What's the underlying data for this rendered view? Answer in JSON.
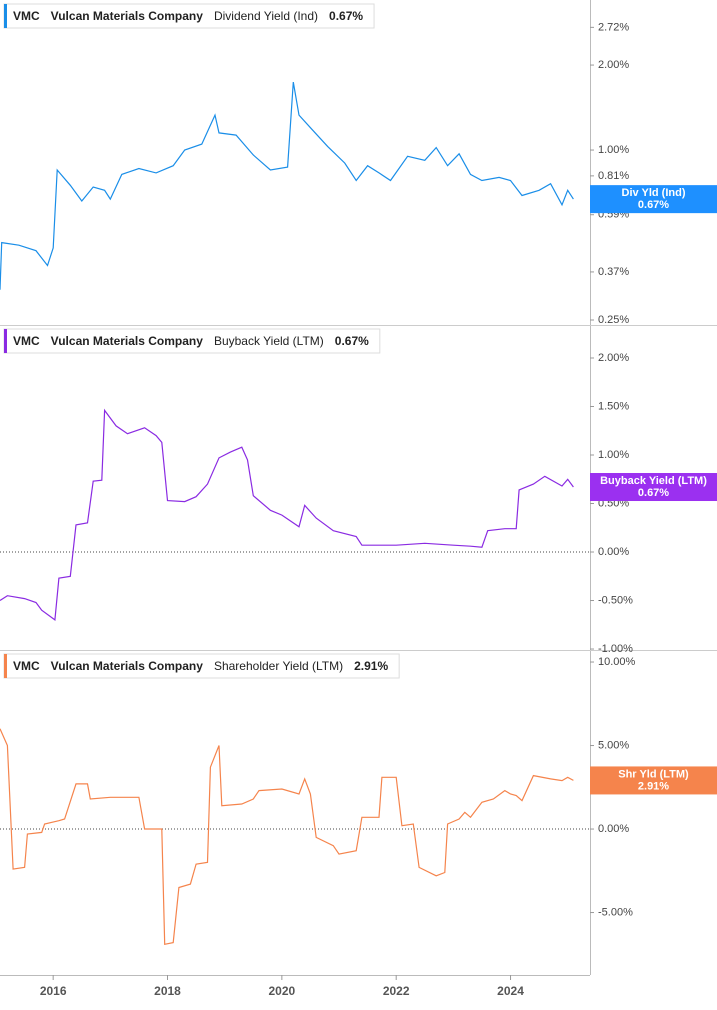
{
  "chart_data": [
    {
      "type": "line",
      "ticker": "VMC",
      "company": "Vulcan Materials Company",
      "log_scale": true,
      "last_value_label": "0.67%",
      "badge": "Div Yld (Ind)",
      "xlim": [
        2015.07,
        2025.39
      ],
      "ylim": [
        0.24,
        3.4
      ],
      "yticks": [
        {
          "value": 0.25,
          "label": "0.25%"
        },
        {
          "value": 0.37,
          "label": "0.37%"
        },
        {
          "value": 0.59,
          "label": "0.59%"
        },
        {
          "value": 0.81,
          "label": "0.81%"
        },
        {
          "value": 1.0,
          "label": "1.00%"
        },
        {
          "value": 2.0,
          "label": "2.00%"
        },
        {
          "value": 2.72,
          "label": "2.72%"
        }
      ],
      "x": [
        2015.07,
        2015.1,
        2015.4,
        2015.7,
        2015.9,
        2016.0,
        2016.07,
        2016.3,
        2016.5,
        2016.7,
        2016.9,
        2017.0,
        2017.2,
        2017.5,
        2017.8,
        2018.1,
        2018.3,
        2018.6,
        2018.83,
        2018.9,
        2019.2,
        2019.5,
        2019.8,
        2020.1,
        2020.2,
        2020.3,
        2020.5,
        2020.8,
        2021.1,
        2021.3,
        2021.5,
        2021.7,
        2021.9,
        2022.2,
        2022.5,
        2022.7,
        2022.9,
        2023.1,
        2023.3,
        2023.5,
        2023.8,
        2024.0,
        2024.2,
        2024.5,
        2024.7,
        2024.9,
        2025.0,
        2025.1
      ],
      "series": [
        {
          "name": "Dividend Yield (Ind)",
          "color": "#1a8ee8",
          "badge_color": "#1e90ff",
          "values": [
            0.32,
            0.47,
            0.46,
            0.44,
            0.39,
            0.45,
            0.85,
            0.75,
            0.66,
            0.74,
            0.72,
            0.67,
            0.82,
            0.86,
            0.83,
            0.88,
            1.0,
            1.05,
            1.33,
            1.15,
            1.13,
            0.96,
            0.85,
            0.87,
            1.74,
            1.33,
            1.2,
            1.03,
            0.9,
            0.78,
            0.88,
            0.83,
            0.78,
            0.95,
            0.92,
            1.02,
            0.88,
            0.97,
            0.82,
            0.78,
            0.8,
            0.78,
            0.69,
            0.72,
            0.76,
            0.64,
            0.72,
            0.67
          ]
        }
      ]
    },
    {
      "type": "line",
      "ticker": "VMC",
      "company": "Vulcan Materials Company",
      "zero_line": true,
      "last_value_label": "0.67%",
      "badge": "Buyback Yield (LTM)",
      "xlim": [
        2015.07,
        2025.39
      ],
      "ylim": [
        -1.01,
        2.34
      ],
      "yticks": [
        {
          "value": -1.0,
          "label": "-1.00%"
        },
        {
          "value": -0.5,
          "label": "-0.50%"
        },
        {
          "value": 0.0,
          "label": "0.00%"
        },
        {
          "value": 0.5,
          "label": "0.50%"
        },
        {
          "value": 1.0,
          "label": "1.00%"
        },
        {
          "value": 1.5,
          "label": "1.50%"
        },
        {
          "value": 2.0,
          "label": "2.00%"
        }
      ],
      "x": [
        2015.07,
        2015.2,
        2015.5,
        2015.7,
        2015.8,
        2016.03,
        2016.1,
        2016.3,
        2016.4,
        2016.6,
        2016.7,
        2016.85,
        2016.9,
        2017.1,
        2017.3,
        2017.6,
        2017.8,
        2017.9,
        2018.0,
        2018.3,
        2018.5,
        2018.7,
        2018.9,
        2019.1,
        2019.3,
        2019.4,
        2019.5,
        2019.8,
        2020.0,
        2020.3,
        2020.4,
        2020.6,
        2020.9,
        2021.3,
        2021.4,
        2022.0,
        2022.5,
        2023.0,
        2023.3,
        2023.5,
        2023.6,
        2023.9,
        2024.1,
        2024.15,
        2024.4,
        2024.6,
        2024.9,
        2025.0,
        2025.1
      ],
      "series": [
        {
          "name": "Buyback Yield (LTM)",
          "color": "#8a2be2",
          "badge_color": "#9b30f0",
          "values": [
            -0.5,
            -0.45,
            -0.48,
            -0.52,
            -0.6,
            -0.7,
            -0.27,
            -0.25,
            0.28,
            0.3,
            0.73,
            0.74,
            1.46,
            1.3,
            1.22,
            1.28,
            1.2,
            1.13,
            0.53,
            0.52,
            0.57,
            0.7,
            0.97,
            1.03,
            1.08,
            0.95,
            0.58,
            0.43,
            0.38,
            0.26,
            0.48,
            0.35,
            0.22,
            0.16,
            0.07,
            0.07,
            0.09,
            0.07,
            0.06,
            0.05,
            0.22,
            0.24,
            0.24,
            0.64,
            0.7,
            0.78,
            0.68,
            0.75,
            0.67
          ]
        }
      ]
    },
    {
      "type": "line",
      "ticker": "VMC",
      "company": "Vulcan Materials Company",
      "zero_line": true,
      "last_value_label": "2.91%",
      "badge": "Shr Yld (LTM)",
      "xlim": [
        2015.07,
        2025.39
      ],
      "ylim": [
        -8.74,
        10.72
      ],
      "xticks": [
        2016,
        2018,
        2020,
        2022,
        2024
      ],
      "yticks": [
        {
          "value": -5.0,
          "label": "-5.00%"
        },
        {
          "value": 0.0,
          "label": "0.00%"
        },
        {
          "value": 5.0,
          "label": "5.00%"
        },
        {
          "value": 10.0,
          "label": "10.00%"
        }
      ],
      "x": [
        2015.07,
        2015.2,
        2015.3,
        2015.5,
        2015.55,
        2015.8,
        2015.85,
        2016.1,
        2016.2,
        2016.4,
        2016.6,
        2016.65,
        2017.0,
        2017.5,
        2017.6,
        2017.9,
        2017.95,
        2018.1,
        2018.2,
        2018.4,
        2018.5,
        2018.7,
        2018.75,
        2018.9,
        2018.95,
        2019.3,
        2019.5,
        2019.6,
        2020.0,
        2020.3,
        2020.4,
        2020.5,
        2020.6,
        2020.9,
        2021.0,
        2021.3,
        2021.4,
        2021.7,
        2021.75,
        2022.0,
        2022.1,
        2022.3,
        2022.4,
        2022.7,
        2022.85,
        2022.9,
        2023.1,
        2023.2,
        2023.3,
        2023.5,
        2023.7,
        2023.9,
        2024.0,
        2024.1,
        2024.2,
        2024.4,
        2024.7,
        2024.9,
        2025.0,
        2025.1
      ],
      "series": [
        {
          "name": "Shareholder Yield (LTM)",
          "color": "#f5844c",
          "badge_color": "#f5844c",
          "values": [
            6.0,
            5.0,
            -2.4,
            -2.3,
            -0.3,
            -0.2,
            0.3,
            0.5,
            0.6,
            2.7,
            2.7,
            1.8,
            1.9,
            1.9,
            0.0,
            0.0,
            -6.9,
            -6.8,
            -3.5,
            -3.3,
            -2.1,
            -2.0,
            3.7,
            5.0,
            1.4,
            1.5,
            1.8,
            2.3,
            2.4,
            2.1,
            3.0,
            2.1,
            -0.5,
            -1.0,
            -1.5,
            -1.3,
            0.7,
            0.7,
            3.1,
            3.1,
            0.2,
            0.3,
            -2.3,
            -2.8,
            -2.6,
            0.3,
            0.6,
            1.0,
            0.7,
            1.6,
            1.8,
            2.3,
            2.1,
            2.0,
            1.7,
            3.2,
            3.0,
            2.9,
            3.1,
            2.91
          ]
        }
      ]
    }
  ]
}
